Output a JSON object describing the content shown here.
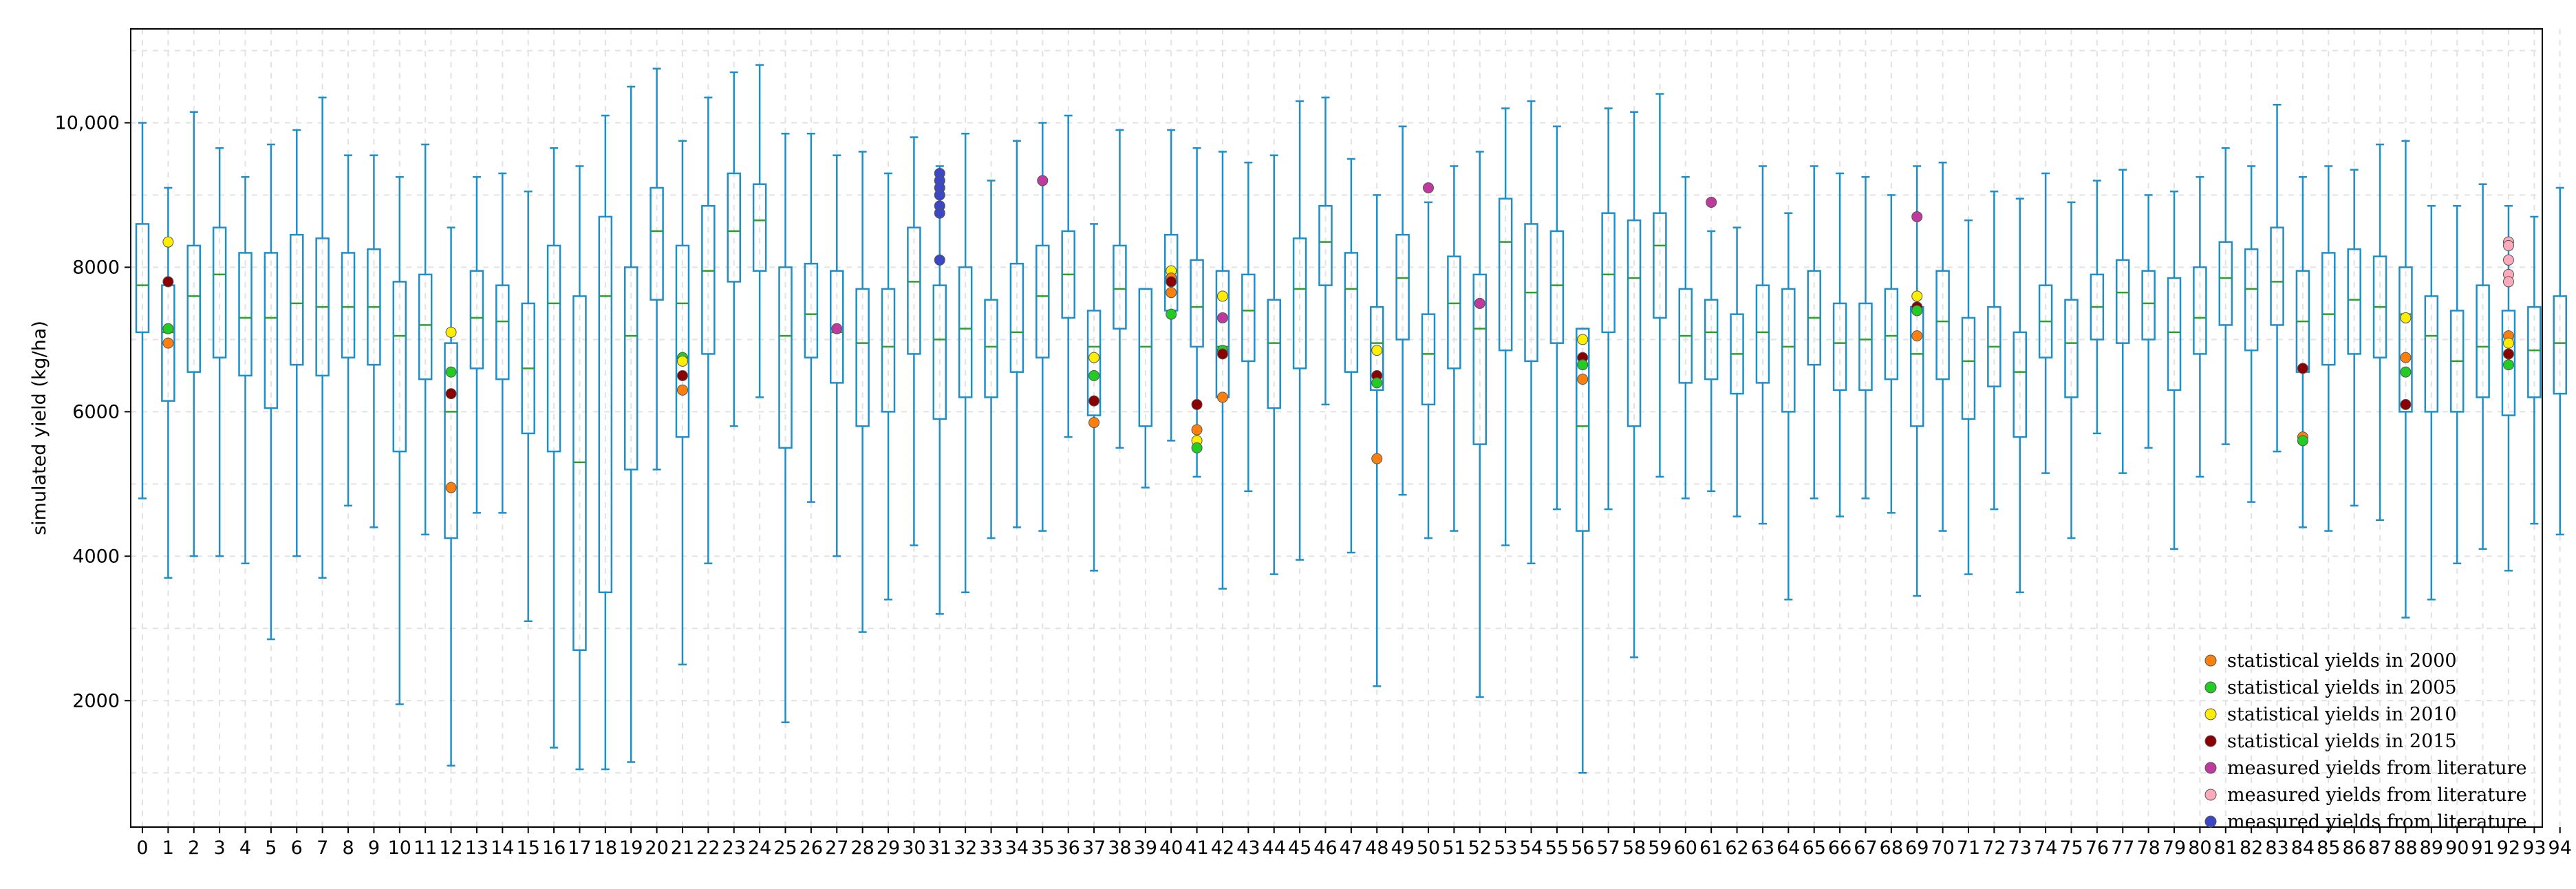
{
  "chart_data": {
    "type": "box",
    "ylabel": "simulated yield (kg/ha)",
    "xlabel": "",
    "ylim": [
      250,
      11300
    ],
    "yticks": [
      2000,
      4000,
      6000,
      8000,
      10000
    ],
    "ytick_labels": [
      "2000",
      "4000",
      "6000",
      "8000",
      "10,000"
    ],
    "grid": true,
    "colors": {
      "whisker": "#1f8fc9",
      "median": "#2ca02c",
      "y2000": "#ff7f0e",
      "y2005": "#22cc22",
      "y2010": "#ffee00",
      "y2015": "#8b0000",
      "lit_magenta": "#c0399e",
      "lit_pink": "#ffaabb",
      "lit_blue": "#3b47c4"
    },
    "legend": [
      {
        "label": "statistical yields in 2000",
        "color_key": "y2000"
      },
      {
        "label": "statistical yields in 2005",
        "color_key": "y2005"
      },
      {
        "label": "statistical yields in 2010",
        "color_key": "y2010"
      },
      {
        "label": "statistical yields in 2015",
        "color_key": "y2015"
      },
      {
        "label": "measured yields from literature",
        "color_key": "lit_magenta"
      },
      {
        "label": "measured yields from literature",
        "color_key": "lit_pink"
      },
      {
        "label": "measured yields from literature",
        "color_key": "lit_blue"
      }
    ],
    "legend_position": "bottom-right",
    "categories": [
      "0",
      "1",
      "2",
      "3",
      "4",
      "5",
      "6",
      "7",
      "8",
      "9",
      "10",
      "11",
      "12",
      "13",
      "14",
      "15",
      "16",
      "17",
      "18",
      "19",
      "20",
      "21",
      "22",
      "23",
      "24",
      "25",
      "26",
      "27",
      "28",
      "29",
      "30",
      "31",
      "32",
      "33",
      "34",
      "35",
      "36",
      "37",
      "38",
      "39",
      "40",
      "41",
      "42",
      "43",
      "44",
      "45",
      "46",
      "47",
      "48",
      "49",
      "50",
      "51",
      "52",
      "53",
      "54",
      "55",
      "56",
      "57",
      "58",
      "59",
      "60",
      "61",
      "62",
      "63",
      "64",
      "65",
      "66",
      "67",
      "68",
      "69",
      "70",
      "71",
      "72",
      "73",
      "74",
      "75",
      "76",
      "77",
      "78",
      "79",
      "80",
      "81",
      "82",
      "83",
      "84",
      "85",
      "86",
      "87",
      "88",
      "89",
      "90",
      "91",
      "92",
      "93",
      "94"
    ],
    "boxes": [
      {
        "min": 4800,
        "q1": 7100,
        "med": 7750,
        "q3": 8600,
        "max": 10000
      },
      {
        "min": 3700,
        "q1": 6150,
        "med": 7100,
        "q3": 7750,
        "max": 9100
      },
      {
        "min": 4000,
        "q1": 6550,
        "med": 7600,
        "q3": 8300,
        "max": 10150
      },
      {
        "min": 4000,
        "q1": 6750,
        "med": 7900,
        "q3": 8550,
        "max": 9650
      },
      {
        "min": 3900,
        "q1": 6500,
        "med": 7300,
        "q3": 8200,
        "max": 9250
      },
      {
        "min": 2850,
        "q1": 6050,
        "med": 7300,
        "q3": 8200,
        "max": 9700
      },
      {
        "min": 4000,
        "q1": 6650,
        "med": 7500,
        "q3": 8450,
        "max": 9900
      },
      {
        "min": 3700,
        "q1": 6500,
        "med": 7450,
        "q3": 8400,
        "max": 10350
      },
      {
        "min": 4700,
        "q1": 6750,
        "med": 7450,
        "q3": 8200,
        "max": 9550
      },
      {
        "min": 4400,
        "q1": 6650,
        "med": 7450,
        "q3": 8250,
        "max": 9550
      },
      {
        "min": 1950,
        "q1": 5450,
        "med": 7050,
        "q3": 7800,
        "max": 9250
      },
      {
        "min": 4300,
        "q1": 6450,
        "med": 7200,
        "q3": 7900,
        "max": 9700
      },
      {
        "min": 1100,
        "q1": 4250,
        "med": 6000,
        "q3": 6950,
        "max": 8550
      },
      {
        "min": 4600,
        "q1": 6600,
        "med": 7300,
        "q3": 7950,
        "max": 9250
      },
      {
        "min": 4600,
        "q1": 6450,
        "med": 7250,
        "q3": 7750,
        "max": 9300
      },
      {
        "min": 3100,
        "q1": 5700,
        "med": 6600,
        "q3": 7500,
        "max": 9050
      },
      {
        "min": 1350,
        "q1": 5450,
        "med": 7500,
        "q3": 8300,
        "max": 9650
      },
      {
        "min": 1050,
        "q1": 2700,
        "med": 5300,
        "q3": 7600,
        "max": 9400
      },
      {
        "min": 1050,
        "q1": 3500,
        "med": 7600,
        "q3": 8700,
        "max": 10100
      },
      {
        "min": 1150,
        "q1": 5200,
        "med": 7050,
        "q3": 8000,
        "max": 10500
      },
      {
        "min": 5200,
        "q1": 7550,
        "med": 8500,
        "q3": 9100,
        "max": 10750
      },
      {
        "min": 2500,
        "q1": 5650,
        "med": 7500,
        "q3": 8300,
        "max": 9750
      },
      {
        "min": 3900,
        "q1": 6800,
        "med": 7950,
        "q3": 8850,
        "max": 10350
      },
      {
        "min": 5800,
        "q1": 7800,
        "med": 8500,
        "q3": 9300,
        "max": 10700
      },
      {
        "min": 6200,
        "q1": 7950,
        "med": 8650,
        "q3": 9150,
        "max": 10800
      },
      {
        "min": 1700,
        "q1": 5500,
        "med": 7050,
        "q3": 8000,
        "max": 9850
      },
      {
        "min": 4750,
        "q1": 6750,
        "med": 7350,
        "q3": 8050,
        "max": 9850
      },
      {
        "min": 4000,
        "q1": 6400,
        "med": 7100,
        "q3": 7950,
        "max": 9550
      },
      {
        "min": 2950,
        "q1": 5800,
        "med": 6950,
        "q3": 7700,
        "max": 9600
      },
      {
        "min": 3400,
        "q1": 6000,
        "med": 6900,
        "q3": 7700,
        "max": 9300
      },
      {
        "min": 4150,
        "q1": 6800,
        "med": 7800,
        "q3": 8550,
        "max": 9800
      },
      {
        "min": 3200,
        "q1": 5900,
        "med": 7000,
        "q3": 7750,
        "max": 9400
      },
      {
        "min": 3500,
        "q1": 6200,
        "med": 7150,
        "q3": 8000,
        "max": 9850
      },
      {
        "min": 4250,
        "q1": 6200,
        "med": 6900,
        "q3": 7550,
        "max": 9200
      },
      {
        "min": 4400,
        "q1": 6550,
        "med": 7100,
        "q3": 8050,
        "max": 9750
      },
      {
        "min": 4350,
        "q1": 6750,
        "med": 7600,
        "q3": 8300,
        "max": 10000
      },
      {
        "min": 5650,
        "q1": 7300,
        "med": 7900,
        "q3": 8500,
        "max": 10100
      },
      {
        "min": 3800,
        "q1": 5950,
        "med": 6900,
        "q3": 7400,
        "max": 8600
      },
      {
        "min": 5500,
        "q1": 7150,
        "med": 7700,
        "q3": 8300,
        "max": 9900
      },
      {
        "min": 4950,
        "q1": 5800,
        "med": 6900,
        "q3": 7700,
        "max": 7700
      },
      {
        "min": 5600,
        "q1": 7400,
        "med": 7950,
        "q3": 8450,
        "max": 9900
      },
      {
        "min": 5100,
        "q1": 6900,
        "med": 7450,
        "q3": 8100,
        "max": 9650
      },
      {
        "min": 3550,
        "q1": 6200,
        "med": 6900,
        "q3": 7950,
        "max": 9600
      },
      {
        "min": 4900,
        "q1": 6700,
        "med": 7400,
        "q3": 7900,
        "max": 9450
      },
      {
        "min": 3750,
        "q1": 6050,
        "med": 6950,
        "q3": 7550,
        "max": 9550
      },
      {
        "min": 3950,
        "q1": 6600,
        "med": 7700,
        "q3": 8400,
        "max": 10300
      },
      {
        "min": 6100,
        "q1": 7750,
        "med": 8350,
        "q3": 8850,
        "max": 10350
      },
      {
        "min": 4050,
        "q1": 6550,
        "med": 7700,
        "q3": 8200,
        "max": 9500
      },
      {
        "min": 2200,
        "q1": 6300,
        "med": 6950,
        "q3": 7450,
        "max": 9000
      },
      {
        "min": 4850,
        "q1": 7000,
        "med": 7850,
        "q3": 8450,
        "max": 9950
      },
      {
        "min": 4250,
        "q1": 6100,
        "med": 6800,
        "q3": 7350,
        "max": 8900
      },
      {
        "min": 4350,
        "q1": 6600,
        "med": 7500,
        "q3": 8150,
        "max": 9400
      },
      {
        "min": 2050,
        "q1": 5550,
        "med": 7150,
        "q3": 7900,
        "max": 9600
      },
      {
        "min": 4150,
        "q1": 6850,
        "med": 8350,
        "q3": 8950,
        "max": 10200
      },
      {
        "min": 3900,
        "q1": 6700,
        "med": 7650,
        "q3": 8600,
        "max": 10300
      },
      {
        "min": 4650,
        "q1": 6950,
        "med": 7750,
        "q3": 8500,
        "max": 9950
      },
      {
        "min": 1000,
        "q1": 4350,
        "med": 5800,
        "q3": 7150,
        "max": 7150
      },
      {
        "min": 4650,
        "q1": 7100,
        "med": 7900,
        "q3": 8750,
        "max": 10200
      },
      {
        "min": 2600,
        "q1": 5800,
        "med": 7850,
        "q3": 8650,
        "max": 10150
      },
      {
        "min": 5100,
        "q1": 7300,
        "med": 8300,
        "q3": 8750,
        "max": 10400
      },
      {
        "min": 4800,
        "q1": 6400,
        "med": 7050,
        "q3": 7700,
        "max": 9250
      },
      {
        "min": 4900,
        "q1": 6450,
        "med": 7100,
        "q3": 7550,
        "max": 8500
      },
      {
        "min": 4550,
        "q1": 6250,
        "med": 6800,
        "q3": 7350,
        "max": 8550
      },
      {
        "min": 4450,
        "q1": 6400,
        "med": 7100,
        "q3": 7750,
        "max": 9400
      },
      {
        "min": 3400,
        "q1": 6000,
        "med": 6900,
        "q3": 7700,
        "max": 8750
      },
      {
        "min": 4800,
        "q1": 6650,
        "med": 7300,
        "q3": 7950,
        "max": 9400
      },
      {
        "min": 4550,
        "q1": 6300,
        "med": 6950,
        "q3": 7500,
        "max": 9300
      },
      {
        "min": 4800,
        "q1": 6300,
        "med": 7000,
        "q3": 7500,
        "max": 9250
      },
      {
        "min": 4600,
        "q1": 6450,
        "med": 7050,
        "q3": 7700,
        "max": 9000
      },
      {
        "min": 3450,
        "q1": 5800,
        "med": 6800,
        "q3": 7450,
        "max": 9400
      },
      {
        "min": 4350,
        "q1": 6450,
        "med": 7250,
        "q3": 7950,
        "max": 9450
      },
      {
        "min": 3750,
        "q1": 5900,
        "med": 6700,
        "q3": 7300,
        "max": 8650
      },
      {
        "min": 4650,
        "q1": 6350,
        "med": 6900,
        "q3": 7450,
        "max": 9050
      },
      {
        "min": 3500,
        "q1": 5650,
        "med": 6550,
        "q3": 7100,
        "max": 8950
      },
      {
        "min": 5150,
        "q1": 6750,
        "med": 7250,
        "q3": 7750,
        "max": 9300
      },
      {
        "min": 4250,
        "q1": 6200,
        "med": 6950,
        "q3": 7550,
        "max": 8900
      },
      {
        "min": 5700,
        "q1": 7000,
        "med": 7450,
        "q3": 7900,
        "max": 9200
      },
      {
        "min": 5150,
        "q1": 6950,
        "med": 7650,
        "q3": 8100,
        "max": 9350
      },
      {
        "min": 5500,
        "q1": 7000,
        "med": 7500,
        "q3": 7950,
        "max": 9000
      },
      {
        "min": 4100,
        "q1": 6300,
        "med": 7100,
        "q3": 7850,
        "max": 9050
      },
      {
        "min": 5100,
        "q1": 6800,
        "med": 7300,
        "q3": 8000,
        "max": 9250
      },
      {
        "min": 5550,
        "q1": 7200,
        "med": 7850,
        "q3": 8350,
        "max": 9650
      },
      {
        "min": 4750,
        "q1": 6850,
        "med": 7700,
        "q3": 8250,
        "max": 9400
      },
      {
        "min": 5450,
        "q1": 7200,
        "med": 7800,
        "q3": 8550,
        "max": 10250
      },
      {
        "min": 4400,
        "q1": 6550,
        "med": 7250,
        "q3": 7950,
        "max": 9250
      },
      {
        "min": 4350,
        "q1": 6650,
        "med": 7350,
        "q3": 8200,
        "max": 9400
      },
      {
        "min": 4700,
        "q1": 6800,
        "med": 7550,
        "q3": 8250,
        "max": 9350
      },
      {
        "min": 4500,
        "q1": 6750,
        "med": 7450,
        "q3": 8150,
        "max": 9700
      },
      {
        "min": 3150,
        "q1": 6000,
        "med": 7350,
        "q3": 8000,
        "max": 9750
      },
      {
        "min": 3400,
        "q1": 6000,
        "med": 7050,
        "q3": 7600,
        "max": 8850
      },
      {
        "min": 3900,
        "q1": 6000,
        "med": 6700,
        "q3": 7400,
        "max": 8850
      },
      {
        "min": 4100,
        "q1": 6200,
        "med": 6900,
        "q3": 7750,
        "max": 9150
      },
      {
        "min": 3800,
        "q1": 5950,
        "med": 6800,
        "q3": 7400,
        "max": 8850
      },
      {
        "min": 4450,
        "q1": 6200,
        "med": 6850,
        "q3": 7450,
        "max": 8700
      },
      {
        "min": 4300,
        "q1": 6250,
        "med": 6950,
        "q3": 7600,
        "max": 9100
      }
    ],
    "points": [
      {
        "x": 1,
        "y": 8350,
        "c": "y2010"
      },
      {
        "x": 1,
        "y": 7800,
        "c": "y2015"
      },
      {
        "x": 1,
        "y": 7150,
        "c": "y2005"
      },
      {
        "x": 1,
        "y": 6950,
        "c": "y2000"
      },
      {
        "x": 12,
        "y": 7100,
        "c": "y2010"
      },
      {
        "x": 12,
        "y": 6550,
        "c": "y2005"
      },
      {
        "x": 12,
        "y": 6250,
        "c": "y2015"
      },
      {
        "x": 12,
        "y": 4950,
        "c": "y2000"
      },
      {
        "x": 21,
        "y": 6750,
        "c": "y2005"
      },
      {
        "x": 21,
        "y": 6700,
        "c": "y2010"
      },
      {
        "x": 21,
        "y": 6500,
        "c": "y2015"
      },
      {
        "x": 21,
        "y": 6300,
        "c": "y2000"
      },
      {
        "x": 27,
        "y": 7150,
        "c": "lit_magenta"
      },
      {
        "x": 31,
        "y": 9300,
        "c": "lit_blue"
      },
      {
        "x": 31,
        "y": 9200,
        "c": "lit_blue"
      },
      {
        "x": 31,
        "y": 9100,
        "c": "lit_blue"
      },
      {
        "x": 31,
        "y": 9000,
        "c": "lit_blue"
      },
      {
        "x": 31,
        "y": 8850,
        "c": "lit_blue"
      },
      {
        "x": 31,
        "y": 8750,
        "c": "lit_blue"
      },
      {
        "x": 31,
        "y": 8100,
        "c": "lit_blue"
      },
      {
        "x": 35,
        "y": 9200,
        "c": "lit_magenta"
      },
      {
        "x": 37,
        "y": 6750,
        "c": "y2010"
      },
      {
        "x": 37,
        "y": 6500,
        "c": "y2005"
      },
      {
        "x": 37,
        "y": 6150,
        "c": "y2015"
      },
      {
        "x": 37,
        "y": 5850,
        "c": "y2000"
      },
      {
        "x": 40,
        "y": 7950,
        "c": "y2010"
      },
      {
        "x": 40,
        "y": 7850,
        "c": "y2000"
      },
      {
        "x": 40,
        "y": 7800,
        "c": "y2015"
      },
      {
        "x": 40,
        "y": 7650,
        "c": "y2000"
      },
      {
        "x": 40,
        "y": 7350,
        "c": "y2005"
      },
      {
        "x": 41,
        "y": 6100,
        "c": "y2015"
      },
      {
        "x": 41,
        "y": 5750,
        "c": "y2000"
      },
      {
        "x": 41,
        "y": 5600,
        "c": "y2010"
      },
      {
        "x": 41,
        "y": 5500,
        "c": "y2005"
      },
      {
        "x": 42,
        "y": 7600,
        "c": "y2010"
      },
      {
        "x": 42,
        "y": 7300,
        "c": "lit_magenta"
      },
      {
        "x": 42,
        "y": 6850,
        "c": "y2005"
      },
      {
        "x": 42,
        "y": 6800,
        "c": "y2015"
      },
      {
        "x": 42,
        "y": 6200,
        "c": "y2000"
      },
      {
        "x": 48,
        "y": 6850,
        "c": "y2010"
      },
      {
        "x": 48,
        "y": 6500,
        "c": "y2015"
      },
      {
        "x": 48,
        "y": 6400,
        "c": "y2005"
      },
      {
        "x": 48,
        "y": 5350,
        "c": "y2000"
      },
      {
        "x": 50,
        "y": 9100,
        "c": "lit_magenta"
      },
      {
        "x": 52,
        "y": 7500,
        "c": "lit_magenta"
      },
      {
        "x": 56,
        "y": 7000,
        "c": "y2010"
      },
      {
        "x": 56,
        "y": 6750,
        "c": "y2015"
      },
      {
        "x": 56,
        "y": 6650,
        "c": "y2005"
      },
      {
        "x": 56,
        "y": 6450,
        "c": "y2000"
      },
      {
        "x": 61,
        "y": 8900,
        "c": "lit_magenta"
      },
      {
        "x": 69,
        "y": 8700,
        "c": "lit_magenta"
      },
      {
        "x": 69,
        "y": 7600,
        "c": "y2010"
      },
      {
        "x": 69,
        "y": 7450,
        "c": "y2015"
      },
      {
        "x": 69,
        "y": 7400,
        "c": "y2005"
      },
      {
        "x": 69,
        "y": 7050,
        "c": "y2000"
      },
      {
        "x": 84,
        "y": 6600,
        "c": "y2015"
      },
      {
        "x": 84,
        "y": 5650,
        "c": "y2000"
      },
      {
        "x": 84,
        "y": 5600,
        "c": "y2005"
      },
      {
        "x": 88,
        "y": 7300,
        "c": "y2010"
      },
      {
        "x": 88,
        "y": 6750,
        "c": "y2000"
      },
      {
        "x": 88,
        "y": 6550,
        "c": "y2005"
      },
      {
        "x": 88,
        "y": 6100,
        "c": "y2015"
      },
      {
        "x": 92,
        "y": 8350,
        "c": "lit_pink"
      },
      {
        "x": 92,
        "y": 8300,
        "c": "lit_pink"
      },
      {
        "x": 92,
        "y": 8100,
        "c": "lit_pink"
      },
      {
        "x": 92,
        "y": 7900,
        "c": "lit_pink"
      },
      {
        "x": 92,
        "y": 7800,
        "c": "lit_pink"
      },
      {
        "x": 92,
        "y": 7050,
        "c": "y2000"
      },
      {
        "x": 92,
        "y": 6950,
        "c": "y2010"
      },
      {
        "x": 92,
        "y": 6800,
        "c": "y2015"
      },
      {
        "x": 92,
        "y": 6650,
        "c": "y2005"
      }
    ]
  }
}
